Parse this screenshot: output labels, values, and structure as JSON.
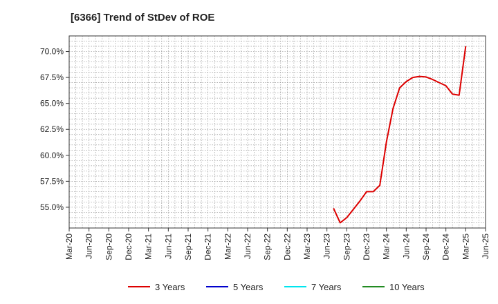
{
  "chart_data": {
    "type": "line",
    "title": "[6366]  Trend of StDev of ROE",
    "xlabel": "",
    "ylabel": "",
    "x_ticks": [
      "Mar-20",
      "Jun-20",
      "Sep-20",
      "Dec-20",
      "Mar-21",
      "Jun-21",
      "Sep-21",
      "Dec-21",
      "Mar-22",
      "Jun-22",
      "Sep-22",
      "Dec-22",
      "Mar-23",
      "Jun-23",
      "Sep-23",
      "Dec-23",
      "Mar-24",
      "Jun-24",
      "Sep-24",
      "Dec-24",
      "Mar-25",
      "Jun-25"
    ],
    "y_ticks": [
      "55.0%",
      "57.5%",
      "60.0%",
      "62.5%",
      "65.0%",
      "67.5%",
      "70.0%"
    ],
    "y_tick_values": [
      55.0,
      57.5,
      60.0,
      62.5,
      65.0,
      67.5,
      70.0
    ],
    "ylim": [
      53.0,
      71.5
    ],
    "grid": true,
    "legend_position": "bottom",
    "series": [
      {
        "name": "3 Years",
        "color": "#dd0000",
        "points": [
          {
            "x": "Jul-23",
            "y": 54.9
          },
          {
            "x": "Aug-23",
            "y": 53.5
          },
          {
            "x": "Sep-23",
            "y": 54.0
          },
          {
            "x": "Oct-23",
            "y": 54.8
          },
          {
            "x": "Nov-23",
            "y": 55.6
          },
          {
            "x": "Dec-23",
            "y": 56.5
          },
          {
            "x": "Jan-24",
            "y": 56.5
          },
          {
            "x": "Feb-24",
            "y": 57.1
          },
          {
            "x": "Mar-24",
            "y": 61.3
          },
          {
            "x": "Apr-24",
            "y": 64.5
          },
          {
            "x": "May-24",
            "y": 66.5
          },
          {
            "x": "Jun-24",
            "y": 67.1
          },
          {
            "x": "Jul-24",
            "y": 67.5
          },
          {
            "x": "Aug-24",
            "y": 67.6
          },
          {
            "x": "Sep-24",
            "y": 67.55
          },
          {
            "x": "Oct-24",
            "y": 67.3
          },
          {
            "x": "Nov-24",
            "y": 67.0
          },
          {
            "x": "Dec-24",
            "y": 66.7
          },
          {
            "x": "Jan-25",
            "y": 65.9
          },
          {
            "x": "Feb-25",
            "y": 65.8
          },
          {
            "x": "Mar-25",
            "y": 70.5
          }
        ]
      },
      {
        "name": "5 Years",
        "color": "#0000cc",
        "points": []
      },
      {
        "name": "7 Years",
        "color": "#00e5ee",
        "points": []
      },
      {
        "name": "10 Years",
        "color": "#228b22",
        "points": []
      }
    ]
  }
}
